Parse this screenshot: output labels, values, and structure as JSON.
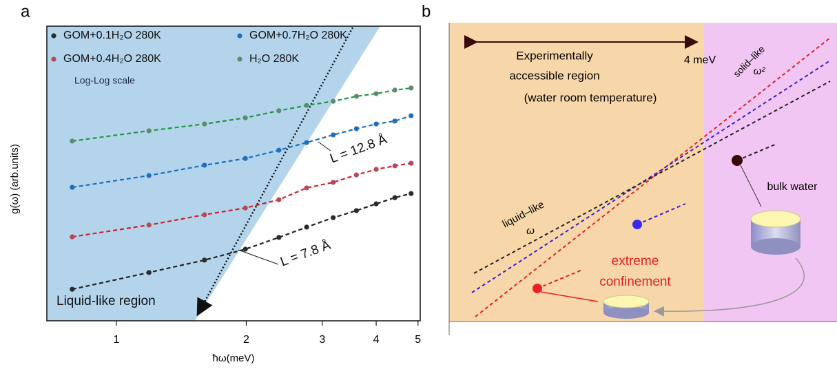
{
  "chart_data": {
    "type": "scatter",
    "panel": "a",
    "xlabel": "ħω(meV)",
    "ylabel": "g(ω) (arb.units)",
    "xscale": "log",
    "xlim": [
      0.69,
      5.06
    ],
    "ylim": [
      0,
      100
    ],
    "xticks": [
      1,
      2,
      3,
      4,
      5
    ],
    "x": [
      0.79,
      1.19,
      1.6,
      1.99,
      2.38,
      2.76,
      3.18,
      3.6,
      4.0,
      4.42,
      4.82
    ],
    "series": [
      {
        "name": "GOM+0.1H₂O 280K",
        "color": "#2b2b2b",
        "fit_color": "#222222",
        "values": [
          10.7,
          16.4,
          20.6,
          24.3,
          28.3,
          31.8,
          35.0,
          37.4,
          39.7,
          41.8,
          43.2
        ]
      },
      {
        "name": "GOM+0.4H₂O 280K",
        "color": "#b5495a",
        "fit_color": "#d0202a",
        "values": [
          28.5,
          32.5,
          36.0,
          38.3,
          41.1,
          45.1,
          47.0,
          49.5,
          51.4,
          52.6,
          53.5
        ]
      },
      {
        "name": "GOM+0.7H₂O 280K",
        "color": "#1f6fc0",
        "fit_color": "#1a6fc0",
        "values": [
          45.3,
          49.3,
          52.8,
          55.1,
          57.9,
          60.5,
          63.1,
          65.2,
          66.8,
          67.8,
          69.6
        ]
      },
      {
        "name": "H₂O 280K",
        "color": "#5e8a6e",
        "fit_color": "#1a9a3a",
        "values": [
          61.0,
          64.5,
          66.8,
          68.9,
          71.3,
          73.1,
          74.5,
          76.2,
          77.1,
          78.3,
          79.0
        ]
      }
    ],
    "annotations": [
      "Log-Log scale",
      "Liquid-like region",
      "L = 12.8 Å",
      "L = 7.8 Å"
    ]
  },
  "panel_labels": [
    "a",
    "b"
  ],
  "panel_b": {
    "region_label": [
      "Experimentally",
      "accessible region",
      "(water room temperature)"
    ],
    "energy_label": "4 meV",
    "solid_label": "solid–like",
    "solid_power": "ω²",
    "liquid_label": "liquid–like",
    "liquid_power": "ω",
    "bulk_label": "bulk water",
    "confinement_label": [
      "extreme",
      "confinement"
    ]
  }
}
